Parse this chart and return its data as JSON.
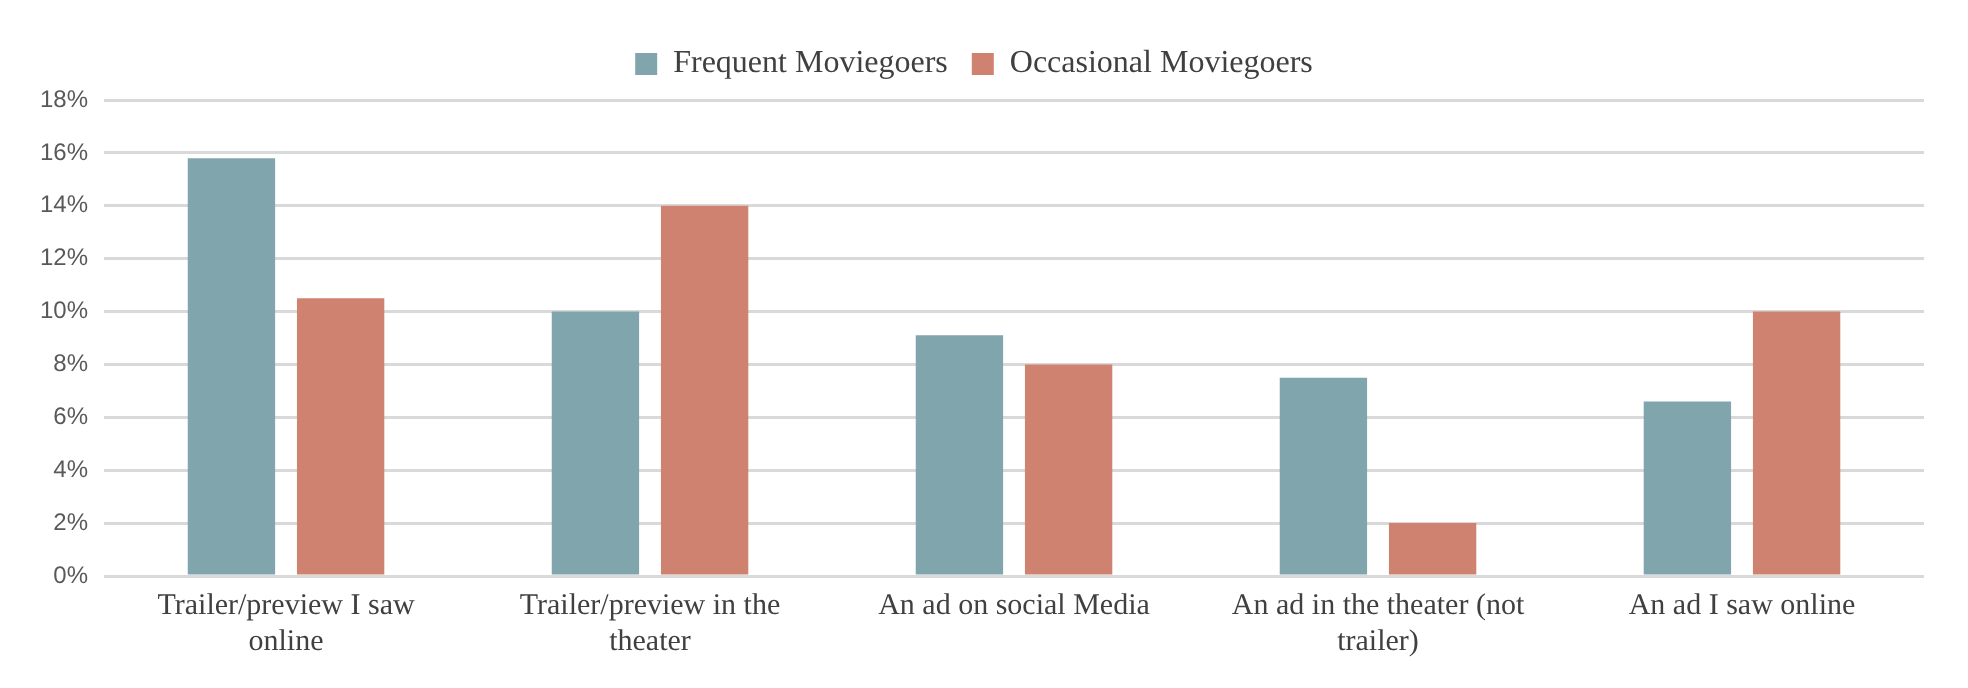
{
  "chart_data": {
    "type": "bar",
    "categories": [
      "Trailer/preview I saw online",
      "Trailer/preview in the theater",
      "An ad on social Media",
      "An ad in the theater (not trailer)",
      "An ad I saw online"
    ],
    "series": [
      {
        "name": "Frequent Moviegoers",
        "color": "#80a5ad",
        "values": [
          15.8,
          10.0,
          9.1,
          7.5,
          6.6
        ]
      },
      {
        "name": "Occasional Moviegoers",
        "color": "#d08270",
        "values": [
          10.5,
          14.0,
          8.0,
          2.0,
          10.0
        ]
      }
    ],
    "ylim": [
      0,
      18
    ],
    "yticks": [
      {
        "value": 0,
        "label": "0%"
      },
      {
        "value": 2,
        "label": "2%"
      },
      {
        "value": 4,
        "label": "4%"
      },
      {
        "value": 6,
        "label": "6%"
      },
      {
        "value": 8,
        "label": "8%"
      },
      {
        "value": 10,
        "label": "10%"
      },
      {
        "value": 12,
        "label": "12%"
      },
      {
        "value": 14,
        "label": "14%"
      },
      {
        "value": 16,
        "label": "16%"
      },
      {
        "value": 18,
        "label": "18%"
      }
    ],
    "grid": "y",
    "legend": "top"
  }
}
